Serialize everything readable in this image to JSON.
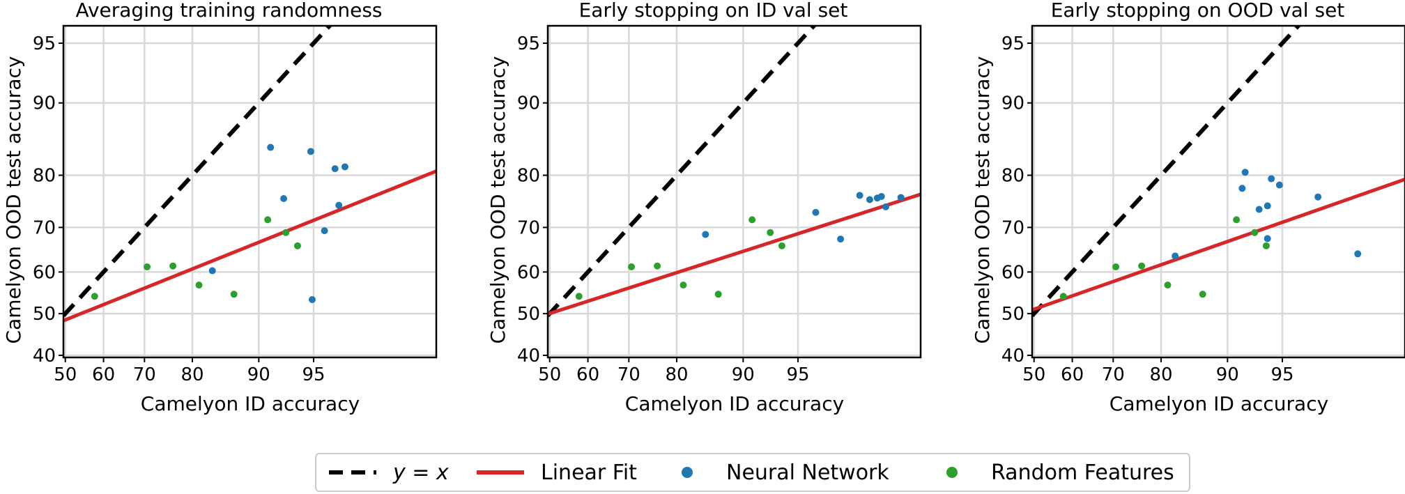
{
  "colors": {
    "identity": "#000000",
    "fit": "#d62728",
    "neural": "#1f77b4",
    "random": "#2ca02c",
    "grid": "#d9d9d9"
  },
  "legend": {
    "identity_label": "y = x",
    "fit_label": "Linear Fit",
    "neural_label": "Neural Network",
    "random_label": "Random Features"
  },
  "chart_data": [
    {
      "type": "scatter",
      "title": "Averaging training randomness",
      "xlabel": "Camelyon ID accuracy",
      "ylabel": "Camelyon OOD test accuracy",
      "scale": "probit",
      "xlim": [
        49.5,
        99.3
      ],
      "ylim": [
        39.5,
        96.0
      ],
      "xticks": [
        50,
        60,
        70,
        80,
        90,
        95
      ],
      "yticks": [
        40,
        50,
        60,
        70,
        80,
        90,
        95
      ],
      "fit": [
        [
          49.5,
          48.3
        ],
        [
          99.3,
          80.7
        ]
      ],
      "series": [
        {
          "name": "Neural Network",
          "points": [
            [
              91.3,
              84.4
            ],
            [
              92.6,
              75.8
            ],
            [
              94.8,
              83.8
            ],
            [
              96.3,
              81.1
            ],
            [
              96.8,
              81.4
            ],
            [
              95.7,
              69.3
            ],
            [
              96.5,
              74.5
            ],
            [
              83.5,
              60.3
            ],
            [
              94.9,
              53.4
            ]
          ]
        },
        {
          "name": "Random Features",
          "points": [
            [
              57.7,
              54.2
            ],
            [
              70.6,
              61.2
            ],
            [
              76.2,
              61.4
            ],
            [
              81.2,
              56.9
            ],
            [
              86.8,
              54.7
            ],
            [
              91.0,
              71.6
            ],
            [
              92.8,
              68.9
            ],
            [
              93.8,
              66.0
            ]
          ]
        }
      ]
    },
    {
      "type": "scatter",
      "title": "Early stopping on ID val set",
      "xlabel": "Camelyon ID accuracy",
      "ylabel": "Camelyon OOD test accuracy",
      "scale": "probit",
      "xlim": [
        49.5,
        99.3
      ],
      "ylim": [
        39.5,
        96.0
      ],
      "xticks": [
        50,
        60,
        70,
        80,
        90,
        95
      ],
      "yticks": [
        40,
        50,
        60,
        70,
        80,
        90,
        95
      ],
      "fit": [
        [
          49.5,
          49.9
        ],
        [
          99.3,
          76.6
        ]
      ],
      "series": [
        {
          "name": "Neural Network",
          "points": [
            [
              84.9,
              68.5
            ],
            [
              96.1,
              73.1
            ],
            [
              97.3,
              67.5
            ],
            [
              98.0,
              76.4
            ],
            [
              98.3,
              75.6
            ],
            [
              98.5,
              75.9
            ],
            [
              98.6,
              76.2
            ],
            [
              98.7,
              74.2
            ],
            [
              99.0,
              76.0
            ]
          ]
        },
        {
          "name": "Random Features",
          "points": [
            [
              57.7,
              54.2
            ],
            [
              70.6,
              61.2
            ],
            [
              76.2,
              61.4
            ],
            [
              81.2,
              56.9
            ],
            [
              86.8,
              54.7
            ],
            [
              91.0,
              71.6
            ],
            [
              92.8,
              68.9
            ],
            [
              93.8,
              66.0
            ]
          ]
        }
      ]
    },
    {
      "type": "scatter",
      "title": "Early stopping on OOD val set",
      "xlabel": "Camelyon ID accuracy",
      "ylabel": "Camelyon OOD test accuracy",
      "scale": "probit",
      "xlim": [
        49.5,
        99.3
      ],
      "ylim": [
        39.5,
        96.0
      ],
      "xticks": [
        50,
        60,
        70,
        80,
        90,
        95
      ],
      "yticks": [
        40,
        50,
        60,
        70,
        80,
        90,
        95
      ],
      "fit": [
        [
          49.5,
          50.9
        ],
        [
          99.3,
          79.3
        ]
      ],
      "series": [
        {
          "name": "Neural Network",
          "points": [
            [
              91.6,
              77.7
            ],
            [
              91.9,
              80.5
            ],
            [
              93.2,
              73.7
            ],
            [
              93.9,
              74.4
            ],
            [
              94.2,
              79.4
            ],
            [
              94.8,
              78.3
            ],
            [
              97.0,
              76.1
            ],
            [
              98.4,
              64.2
            ],
            [
              93.9,
              67.6
            ],
            [
              82.5,
              63.7
            ]
          ]
        },
        {
          "name": "Random Features",
          "points": [
            [
              57.7,
              54.2
            ],
            [
              70.6,
              61.2
            ],
            [
              76.2,
              61.4
            ],
            [
              81.2,
              56.9
            ],
            [
              86.8,
              54.7
            ],
            [
              91.0,
              71.6
            ],
            [
              92.8,
              68.9
            ],
            [
              93.8,
              66.0
            ]
          ]
        }
      ]
    }
  ]
}
